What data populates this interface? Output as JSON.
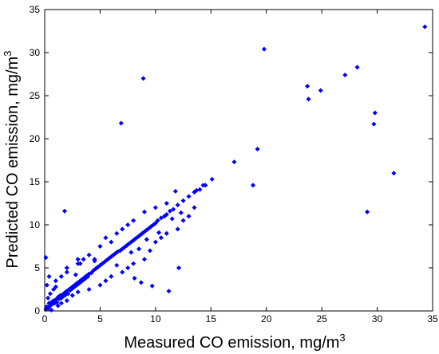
{
  "chart_data": {
    "type": "scatter",
    "xlabel": "Measured CO emission, mg/m",
    "xlabel_sup": "3",
    "ylabel": "Predicted CO emission, mg/m",
    "ylabel_sup": "3",
    "xlim": [
      0,
      35
    ],
    "ylim": [
      0,
      35
    ],
    "xticks": [
      0,
      5,
      10,
      15,
      20,
      25,
      30,
      35
    ],
    "yticks": [
      0,
      5,
      10,
      15,
      20,
      25,
      30,
      35
    ],
    "grid": false,
    "legend": "none",
    "marker_color": "#0000FF",
    "axis_color": "#000000",
    "background": "#FFFFFF",
    "series": [
      {
        "points": [
          [
            0.1,
            0.2
          ],
          [
            0.2,
            0.5
          ],
          [
            0.3,
            0.3
          ],
          [
            0.4,
            0.9
          ],
          [
            0.5,
            0.6
          ],
          [
            0.6,
            1.0
          ],
          [
            0.7,
            0.8
          ],
          [
            0.8,
            1.2
          ],
          [
            0.9,
            0.9
          ],
          [
            1.0,
            1.3
          ],
          [
            1.1,
            1.0
          ],
          [
            1.2,
            1.6
          ],
          [
            1.3,
            1.4
          ],
          [
            1.4,
            1.8
          ],
          [
            1.5,
            1.5
          ],
          [
            1.6,
            1.9
          ],
          [
            1.7,
            1.7
          ],
          [
            1.8,
            2.1
          ],
          [
            1.9,
            1.9
          ],
          [
            2.0,
            2.3
          ],
          [
            2.1,
            2.0
          ],
          [
            2.2,
            2.5
          ],
          [
            2.3,
            2.4
          ],
          [
            2.4,
            2.7
          ],
          [
            2.5,
            2.6
          ],
          [
            2.6,
            2.9
          ],
          [
            2.7,
            2.8
          ],
          [
            2.8,
            3.1
          ],
          [
            2.9,
            3.0
          ],
          [
            3.0,
            3.3
          ],
          [
            3.1,
            3.2
          ],
          [
            3.2,
            3.5
          ],
          [
            3.3,
            3.4
          ],
          [
            3.4,
            3.7
          ],
          [
            3.5,
            3.6
          ],
          [
            3.6,
            3.9
          ],
          [
            3.7,
            3.8
          ],
          [
            3.8,
            4.1
          ],
          [
            3.9,
            4.0
          ],
          [
            4.0,
            4.3
          ],
          [
            4.2,
            4.4
          ],
          [
            4.4,
            4.7
          ],
          [
            4.6,
            4.9
          ],
          [
            4.8,
            5.1
          ],
          [
            5.0,
            5.3
          ],
          [
            5.2,
            5.5
          ],
          [
            5.4,
            5.7
          ],
          [
            5.6,
            5.9
          ],
          [
            5.8,
            6.1
          ],
          [
            6.0,
            6.3
          ],
          [
            6.2,
            6.5
          ],
          [
            6.4,
            6.7
          ],
          [
            6.6,
            6.9
          ],
          [
            6.8,
            7.0
          ],
          [
            7.0,
            7.2
          ],
          [
            7.2,
            7.4
          ],
          [
            7.4,
            7.6
          ],
          [
            7.6,
            7.8
          ],
          [
            7.8,
            8.0
          ],
          [
            8.0,
            8.2
          ],
          [
            8.2,
            8.4
          ],
          [
            8.4,
            8.6
          ],
          [
            8.6,
            8.8
          ],
          [
            8.8,
            9.0
          ],
          [
            9.0,
            9.2
          ],
          [
            9.2,
            9.4
          ],
          [
            9.4,
            9.6
          ],
          [
            9.6,
            9.8
          ],
          [
            9.8,
            10.0
          ],
          [
            10.0,
            10.2
          ],
          [
            10.2,
            10.5
          ],
          [
            10.5,
            10.8
          ],
          [
            10.8,
            11.0
          ],
          [
            11.0,
            11.2
          ],
          [
            11.3,
            11.6
          ],
          [
            11.6,
            11.8
          ],
          [
            12.0,
            12.3
          ],
          [
            12.5,
            12.8
          ],
          [
            13.0,
            13.3
          ],
          [
            13.5,
            13.8
          ],
          [
            14.0,
            14.1
          ],
          [
            14.5,
            14.6
          ],
          [
            0.3,
            1.5
          ],
          [
            0.5,
            2.0
          ],
          [
            0.8,
            2.5
          ],
          [
            1.0,
            2.8
          ],
          [
            0.6,
            0.1
          ],
          [
            1.2,
            0.6
          ],
          [
            1.5,
            0.9
          ],
          [
            2.0,
            1.2
          ],
          [
            2.5,
            1.8
          ],
          [
            3.0,
            2.2
          ],
          [
            0.2,
            3.0
          ],
          [
            0.4,
            4.0
          ],
          [
            0.1,
            6.2
          ],
          [
            1.0,
            3.5
          ],
          [
            1.5,
            4.0
          ],
          [
            2.0,
            4.5
          ],
          [
            3.0,
            5.5
          ],
          [
            3.5,
            6.0
          ],
          [
            4.0,
            6.5
          ],
          [
            4.5,
            6.0
          ],
          [
            5.0,
            7.5
          ],
          [
            5.5,
            8.5
          ],
          [
            6.0,
            8.0
          ],
          [
            6.5,
            9.0
          ],
          [
            7.0,
            9.5
          ],
          [
            7.5,
            10.0
          ],
          [
            8.0,
            10.5
          ],
          [
            9.0,
            11.5
          ],
          [
            10.0,
            12.0
          ],
          [
            11.0,
            12.5
          ],
          [
            4.0,
            2.5
          ],
          [
            5.0,
            3.0
          ],
          [
            5.5,
            3.5
          ],
          [
            6.0,
            4.0
          ],
          [
            7.0,
            4.5
          ],
          [
            7.5,
            5.0
          ],
          [
            8.0,
            5.5
          ],
          [
            9.0,
            6.0
          ],
          [
            9.5,
            7.0
          ],
          [
            10.0,
            8.0
          ],
          [
            10.5,
            8.5
          ],
          [
            11.0,
            9.0
          ],
          [
            12.0,
            9.5
          ],
          [
            12.5,
            10.5
          ],
          [
            13.0,
            11.0
          ],
          [
            13.5,
            12.0
          ],
          [
            2.0,
            5.0
          ],
          [
            3.0,
            6.0
          ],
          [
            1.8,
            11.6
          ],
          [
            3.2,
            5.5
          ],
          [
            2.8,
            4.2
          ],
          [
            4.5,
            5.8
          ],
          [
            6.5,
            5.3
          ],
          [
            7.8,
            6.8
          ],
          [
            8.5,
            7.2
          ],
          [
            9.2,
            8.3
          ],
          [
            10.3,
            9.1
          ],
          [
            11.5,
            10.7
          ],
          [
            12.3,
            11.4
          ],
          [
            8.1,
            3.8
          ],
          [
            8.7,
            3.3
          ],
          [
            9.7,
            2.9
          ],
          [
            11.2,
            2.3
          ],
          [
            12.1,
            5.0
          ],
          [
            11.8,
            13.9
          ],
          [
            13.7,
            14.0
          ],
          [
            14.3,
            14.6
          ],
          [
            15.1,
            15.3
          ],
          [
            17.1,
            17.3
          ],
          [
            18.8,
            14.6
          ],
          [
            19.2,
            18.8
          ],
          [
            6.9,
            21.8
          ],
          [
            8.9,
            27.0
          ],
          [
            19.8,
            30.4
          ],
          [
            23.7,
            26.1
          ],
          [
            23.8,
            24.6
          ],
          [
            24.9,
            25.6
          ],
          [
            27.1,
            27.4
          ],
          [
            28.2,
            28.3
          ],
          [
            29.1,
            11.5
          ],
          [
            29.7,
            21.7
          ],
          [
            29.8,
            23.0
          ],
          [
            31.5,
            16.0
          ],
          [
            34.3,
            33.0
          ]
        ]
      }
    ]
  }
}
